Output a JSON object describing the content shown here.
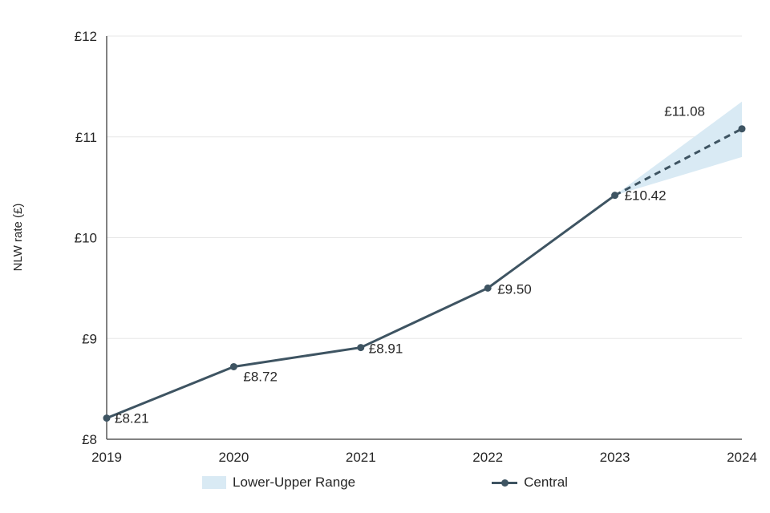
{
  "chart_data": {
    "type": "line",
    "ylabel": "NLW rate (£)",
    "xlabel": "",
    "x": [
      2019,
      2020,
      2021,
      2022,
      2023,
      2024
    ],
    "xtick_labels": [
      "2019",
      "2020",
      "2021",
      "2022",
      "2023",
      "2024"
    ],
    "ylim": [
      8,
      12
    ],
    "yticks": [
      8,
      9,
      10,
      11,
      12
    ],
    "ytick_labels": [
      "£8",
      "£9",
      "£10",
      "£11",
      "£12"
    ],
    "grid": true,
    "legend_position": "bottom",
    "series": [
      {
        "name": "Central",
        "values": [
          8.21,
          8.72,
          8.91,
          9.5,
          10.42,
          11.08
        ],
        "point_labels": [
          "£8.21",
          "£8.72",
          "£8.91",
          "£9.50",
          "£10.42",
          "£11.08"
        ],
        "color": "#3e5462",
        "solid_until_index": 4,
        "dashed_after": true
      }
    ],
    "range_series": {
      "name": "Lower-Upper Range",
      "x": [
        2023,
        2024
      ],
      "lower": [
        10.42,
        10.8
      ],
      "upper": [
        10.42,
        11.35
      ],
      "color": "#d9eaf4"
    },
    "legend": [
      {
        "label": "Lower-Upper Range",
        "type": "area",
        "color": "#d9eaf4"
      },
      {
        "label": "Central",
        "type": "line",
        "color": "#3e5462"
      }
    ],
    "colors": {
      "axis": "#595959",
      "gridline": "#e7e7e7",
      "text": "#262626"
    }
  }
}
